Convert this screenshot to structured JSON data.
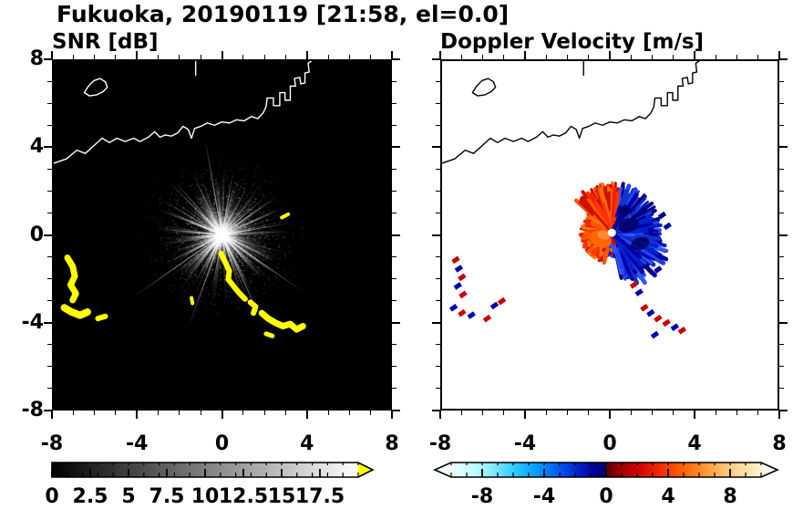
{
  "header": {
    "title": "Fukuoka, 20190119 [21:58, el=0.0]"
  },
  "chart_data": {
    "type": "heatmap",
    "title": "Fukuoka, 20190119 [21:58, el=0.0]",
    "station": "Fukuoka",
    "panels": [
      {
        "title": "SNR [dB]",
        "xlim": [
          -8,
          8
        ],
        "ylim": [
          -8,
          8
        ],
        "xticks": [
          -8,
          -4,
          0,
          4,
          8
        ],
        "xtick_labels": [
          "-8",
          "-4",
          "0",
          "4",
          "8"
        ],
        "yticks": [
          8,
          4,
          0,
          -4,
          -8
        ],
        "ytick_labels": [
          "8",
          "4",
          "0",
          "-4",
          "-8"
        ],
        "ytick_labels_visible": true,
        "minor_step": 1,
        "background": "#000000",
        "coast_color": "#ffffff",
        "colorbar": {
          "range": [
            0,
            20
          ],
          "ticks": [
            0,
            2.5,
            5,
            7.5,
            10,
            12.5,
            15,
            17.5
          ],
          "tick_labels": [
            "0",
            "2.5",
            "5",
            "7.5",
            "10",
            "12.5",
            "15",
            "17.5"
          ],
          "minor_step": 1,
          "gradient": [
            {
              "pos": 0,
              "color": "#000000"
            },
            {
              "pos": 1,
              "color": "#ffffff"
            }
          ],
          "right_arrow_color": "#ffff00"
        }
      },
      {
        "title": "Doppler Velocity [m/s]",
        "xlim": [
          -8,
          8
        ],
        "ylim": [
          -8,
          8
        ],
        "xticks": [
          -8,
          -4,
          0,
          4,
          8
        ],
        "xtick_labels": [
          "-8",
          "-4",
          "0",
          "4",
          "8"
        ],
        "yticks": [
          8,
          4,
          0,
          -4,
          -8
        ],
        "ytick_labels": [
          "8",
          "4",
          "0",
          "-4",
          "-8"
        ],
        "ytick_labels_visible": false,
        "minor_step": 1,
        "background": "#ffffff",
        "coast_color": "#000000",
        "colorbar": {
          "range": [
            -10,
            10
          ],
          "ticks": [
            -8,
            -4,
            0,
            4,
            8
          ],
          "tick_labels": [
            "-8",
            "-4",
            "0",
            "4",
            "8"
          ],
          "minor_step": 1,
          "gradient": [
            {
              "pos": 0.0,
              "color": "#f0ffff"
            },
            {
              "pos": 0.06,
              "color": "#ccffff"
            },
            {
              "pos": 0.13,
              "color": "#88eeff"
            },
            {
              "pos": 0.2,
              "color": "#33ccff"
            },
            {
              "pos": 0.28,
              "color": "#0099ff"
            },
            {
              "pos": 0.35,
              "color": "#0055ee"
            },
            {
              "pos": 0.41,
              "color": "#0022cc"
            },
            {
              "pos": 0.46,
              "color": "#000099"
            },
            {
              "pos": 0.499,
              "color": "#000066"
            },
            {
              "pos": 0.501,
              "color": "#550000"
            },
            {
              "pos": 0.54,
              "color": "#990000"
            },
            {
              "pos": 0.6,
              "color": "#cc0000"
            },
            {
              "pos": 0.66,
              "color": "#ee2200"
            },
            {
              "pos": 0.73,
              "color": "#ff5500"
            },
            {
              "pos": 0.8,
              "color": "#ff8822"
            },
            {
              "pos": 0.87,
              "color": "#ffbb66"
            },
            {
              "pos": 0.94,
              "color": "#ffdda0"
            },
            {
              "pos": 1.0,
              "color": "#fff3cc"
            }
          ],
          "left_arrow_color": "#f5ffff",
          "right_arrow_color": "#fffbe8"
        }
      }
    ],
    "coastline": {
      "mainland": [
        [
          -8,
          3.3
        ],
        [
          -7.4,
          3.5
        ],
        [
          -6.9,
          3.9
        ],
        [
          -6.5,
          3.75
        ],
        [
          -6.1,
          4.1
        ],
        [
          -5.7,
          4.45
        ],
        [
          -5.35,
          4.25
        ],
        [
          -5.0,
          4.45
        ],
        [
          -4.6,
          4.3
        ],
        [
          -4.2,
          4.45
        ],
        [
          -3.9,
          4.3
        ],
        [
          -3.5,
          4.5
        ],
        [
          -3.2,
          4.75
        ],
        [
          -2.95,
          4.5
        ],
        [
          -2.7,
          4.6
        ],
        [
          -2.4,
          4.55
        ],
        [
          -2.1,
          4.7
        ],
        [
          -1.85,
          5.0
        ],
        [
          -1.6,
          4.85
        ],
        [
          -1.45,
          4.45
        ],
        [
          -1.3,
          4.9
        ],
        [
          -1.0,
          5.0
        ],
        [
          -0.7,
          5.15
        ],
        [
          -0.35,
          5.05
        ],
        [
          0,
          5.2
        ],
        [
          0.35,
          5.15
        ],
        [
          0.7,
          5.3
        ],
        [
          1.05,
          5.25
        ],
        [
          1.4,
          5.45
        ],
        [
          1.7,
          5.35
        ],
        [
          1.95,
          5.6
        ],
        [
          2.1,
          5.9
        ],
        [
          2.15,
          6.3
        ],
        [
          2.45,
          6.3
        ],
        [
          2.45,
          5.95
        ],
        [
          2.75,
          5.95
        ],
        [
          2.75,
          6.55
        ],
        [
          3.0,
          6.55
        ],
        [
          3.0,
          6.2
        ],
        [
          3.25,
          6.2
        ],
        [
          3.25,
          6.85
        ],
        [
          3.5,
          6.85
        ],
        [
          3.45,
          7.2
        ],
        [
          3.7,
          7.25
        ],
        [
          3.75,
          6.95
        ],
        [
          3.95,
          7.0
        ],
        [
          3.95,
          7.45
        ],
        [
          4.15,
          7.5
        ],
        [
          4.1,
          7.9
        ],
        [
          4.25,
          8.0
        ]
      ],
      "island": [
        [
          -6.55,
          6.55
        ],
        [
          -6.35,
          6.85
        ],
        [
          -6.1,
          7.1
        ],
        [
          -5.8,
          7.2
        ],
        [
          -5.55,
          7.05
        ],
        [
          -5.45,
          6.8
        ],
        [
          -5.65,
          6.6
        ],
        [
          -5.95,
          6.45
        ],
        [
          -6.3,
          6.4
        ],
        [
          -6.55,
          6.55
        ]
      ],
      "spike": [
        [
          -1.25,
          8
        ],
        [
          -1.25,
          7.35
        ]
      ]
    },
    "snr_field": {
      "seed": 7,
      "center": {
        "x": 0,
        "y": 0
      },
      "max_radius_units": 4.6
    },
    "snr_echoes": {
      "color": "#ffff00",
      "polylines": [
        {
          "w": 7,
          "pts": [
            [
              -7.35,
              -1.05
            ],
            [
              -7.1,
              -1.45
            ],
            [
              -7.0,
              -1.9
            ],
            [
              -7.2,
              -2.3
            ],
            [
              -6.95,
              -2.7
            ],
            [
              -7.1,
              -3.0
            ]
          ]
        },
        {
          "w": 8,
          "pts": [
            [
              -7.5,
              -3.35
            ],
            [
              -7.15,
              -3.55
            ],
            [
              -6.75,
              -3.7
            ],
            [
              -6.4,
              -3.55
            ]
          ]
        },
        {
          "w": 6,
          "pts": [
            [
              -5.9,
              -3.85
            ],
            [
              -5.55,
              -3.75
            ]
          ]
        },
        {
          "w": 6,
          "pts": [
            [
              -0.05,
              -0.85
            ],
            [
              0.15,
              -1.25
            ],
            [
              0.35,
              -1.65
            ],
            [
              0.3,
              -2.05
            ],
            [
              0.55,
              -2.35
            ],
            [
              0.8,
              -2.65
            ],
            [
              1.1,
              -2.95
            ]
          ]
        },
        {
          "w": 6,
          "pts": [
            [
              1.35,
              -3.1
            ],
            [
              1.6,
              -3.3
            ],
            [
              1.5,
              -3.6
            ]
          ]
        },
        {
          "w": 7,
          "pts": [
            [
              1.9,
              -3.6
            ],
            [
              2.2,
              -3.85
            ],
            [
              2.55,
              -4.05
            ],
            [
              2.9,
              -4.2
            ],
            [
              3.25,
              -4.1
            ],
            [
              3.55,
              -4.35
            ],
            [
              3.85,
              -4.2
            ]
          ]
        },
        {
          "w": 5,
          "pts": [
            [
              2.1,
              -4.55
            ],
            [
              2.4,
              -4.65
            ]
          ]
        },
        {
          "w": 4,
          "pts": [
            [
              2.85,
              0.8
            ],
            [
              3.15,
              0.95
            ]
          ]
        },
        {
          "w": 4,
          "pts": [
            [
              -1.45,
              -2.9
            ],
            [
              -1.4,
              -3.15
            ]
          ]
        }
      ]
    },
    "doppler_field": {
      "seed": 13,
      "center": {
        "x": 0.1,
        "y": 0.1
      },
      "max_radius_units": 2.9,
      "blue_colors": [
        "#0022cc",
        "#0000aa",
        "#2244ee",
        "#000088",
        "#1133cc",
        "#3355ff"
      ],
      "warm_colors": [
        "#ee2200",
        "#ff5500",
        "#cc1100",
        "#ff7700",
        "#ff3300"
      ]
    },
    "doppler_specks": [
      {
        "x": -7.35,
        "y": -1.15,
        "c": "#cc0000"
      },
      {
        "x": -7.2,
        "y": -1.55,
        "c": "#0000bb"
      },
      {
        "x": -7.05,
        "y": -1.95,
        "c": "#cc0000"
      },
      {
        "x": -7.25,
        "y": -2.35,
        "c": "#0000bb"
      },
      {
        "x": -7.0,
        "y": -2.75,
        "c": "#cc0000"
      },
      {
        "x": -7.45,
        "y": -3.35,
        "c": "#0000bb"
      },
      {
        "x": -7.05,
        "y": -3.6,
        "c": "#cc0000"
      },
      {
        "x": -6.6,
        "y": -3.7,
        "c": "#0000bb"
      },
      {
        "x": -5.85,
        "y": -3.85,
        "c": "#cc0000"
      },
      {
        "x": -5.5,
        "y": -3.25,
        "c": "#0000bb"
      },
      {
        "x": -5.15,
        "y": -3.05,
        "c": "#cc0000"
      },
      {
        "x": 1.65,
        "y": -3.35,
        "c": "#cc0000"
      },
      {
        "x": 1.95,
        "y": -3.6,
        "c": "#0000bb"
      },
      {
        "x": 2.3,
        "y": -3.85,
        "c": "#cc0000"
      },
      {
        "x": 2.7,
        "y": -4.05,
        "c": "#cc0000"
      },
      {
        "x": 3.1,
        "y": -4.25,
        "c": "#0000bb"
      },
      {
        "x": 3.45,
        "y": -4.4,
        "c": "#cc0000"
      },
      {
        "x": 2.15,
        "y": -4.6,
        "c": "#0000bb"
      },
      {
        "x": 2.5,
        "y": 0.9,
        "c": "#000088"
      },
      {
        "x": 2.75,
        "y": 0.4,
        "c": "#0011aa"
      },
      {
        "x": 2.3,
        "y": -1.6,
        "c": "#0000aa"
      },
      {
        "x": 1.15,
        "y": -2.3,
        "c": "#cc0000"
      },
      {
        "x": 1.4,
        "y": -2.65,
        "c": "#0000bb"
      }
    ]
  }
}
